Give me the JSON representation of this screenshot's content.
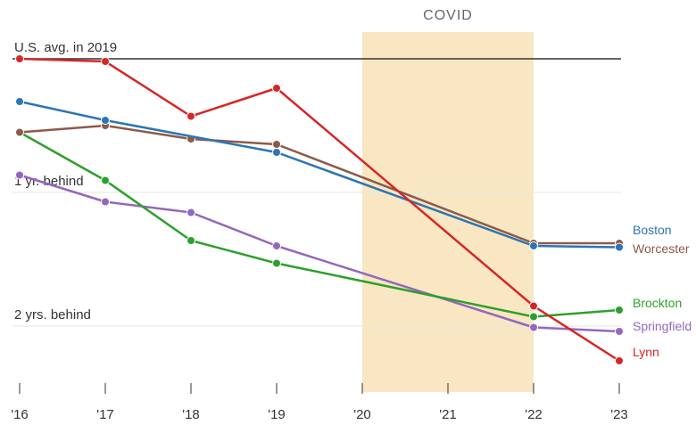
{
  "chart_data": {
    "type": "line",
    "x": [
      "'16",
      "'17",
      "'18",
      "'19",
      "'20",
      "'21",
      "'22",
      "'23"
    ],
    "x_numeric": [
      2016,
      2017,
      2018,
      2019,
      2020,
      2021,
      2022,
      2023
    ],
    "ylim": [
      -2.43,
      0.07
    ],
    "grid": false,
    "reference_lines": [
      {
        "label": "U.S. avg. in 2019",
        "value": 0,
        "color": "#333333"
      },
      {
        "label": "1 yr. behind",
        "value": -1,
        "color": "#e6e6e6"
      },
      {
        "label": "2 yrs. behind",
        "value": -2,
        "color": "#e6e6e6"
      }
    ],
    "highlight_band": {
      "label": "COVID",
      "from": 2020,
      "to": 2022,
      "color": "#f8e7c2"
    },
    "series": [
      {
        "name": "Boston",
        "color": "#2b75b4",
        "x": [
          2016,
          2017,
          2019,
          2022,
          2023
        ],
        "values": [
          -0.32,
          -0.46,
          -0.7,
          -1.4,
          -1.41
        ]
      },
      {
        "name": "Worcester",
        "color": "#8c5a4a",
        "x": [
          2016,
          2017,
          2018,
          2019,
          2022,
          2023
        ],
        "values": [
          -0.55,
          -0.5,
          -0.6,
          -0.64,
          -1.38,
          -1.38
        ]
      },
      {
        "name": "Brockton",
        "color": "#2ca02c",
        "x": [
          2016,
          2017,
          2018,
          2019,
          2022,
          2023
        ],
        "values": [
          -0.55,
          -0.91,
          -1.36,
          -1.53,
          -1.93,
          -1.88
        ]
      },
      {
        "name": "Springfield",
        "color": "#9467bd",
        "x": [
          2016,
          2017,
          2018,
          2019,
          2022,
          2023
        ],
        "values": [
          -0.87,
          -1.07,
          -1.15,
          -1.4,
          -2.01,
          -2.04
        ]
      },
      {
        "name": "Lynn",
        "color": "#d62728",
        "x": [
          2016,
          2017,
          2018,
          2019,
          2022,
          2023
        ],
        "values": [
          0.0,
          -0.02,
          -0.43,
          -0.22,
          -1.85,
          -2.26
        ]
      }
    ]
  }
}
